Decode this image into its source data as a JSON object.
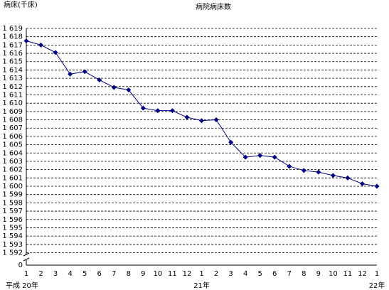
{
  "chart_data": {
    "type": "line",
    "title": "病院病床数",
    "y_label": "病床(千床)",
    "categories": [
      "1",
      "2",
      "3",
      "4",
      "5",
      "6",
      "7",
      "8",
      "9",
      "10",
      "11",
      "12",
      "1",
      "2",
      "3",
      "4",
      "5",
      "6",
      "7",
      "8",
      "9",
      "10",
      "11",
      "12",
      "1"
    ],
    "groups": [
      {
        "label": "平成 20年",
        "categories": 12
      },
      {
        "label": "21年",
        "categories": 12
      },
      {
        "label": "22年",
        "categories": 1
      }
    ],
    "series": [
      {
        "name": "病院病床数",
        "color": "#000080",
        "values": [
          1617.5,
          1617.0,
          1616.1,
          1613.5,
          1613.8,
          1612.8,
          1611.9,
          1611.6,
          1609.4,
          1609.1,
          1609.1,
          1608.3,
          1607.9,
          1608.0,
          1605.3,
          1603.5,
          1603.7,
          1603.5,
          1602.4,
          1601.9,
          1601.7,
          1601.3,
          1601.0,
          1600.3,
          1600.0
        ]
      }
    ],
    "ylim": [
      1592,
      1619
    ],
    "yticks": [
      0,
      {
        "value": 1592,
        "label": "1 592"
      },
      {
        "value": 1593,
        "label": "1 593"
      },
      {
        "value": 1594,
        "label": "1 594"
      },
      {
        "value": 1595,
        "label": "1 595"
      },
      {
        "value": 1596,
        "label": "1 596"
      },
      {
        "value": 1597,
        "label": "1 597"
      },
      {
        "value": 1598,
        "label": "1 598"
      },
      {
        "value": 1599,
        "label": "1 599"
      },
      {
        "value": 1600,
        "label": "1 600"
      },
      {
        "value": 1601,
        "label": "1 601"
      },
      {
        "value": 1602,
        "label": "1 602"
      },
      {
        "value": 1603,
        "label": "1 603"
      },
      {
        "value": 1604,
        "label": "1 604"
      },
      {
        "value": 1605,
        "label": "1 605"
      },
      {
        "value": 1606,
        "label": "1 606"
      },
      {
        "value": 1607,
        "label": "1 607"
      },
      {
        "value": 1608,
        "label": "1 608"
      },
      {
        "value": 1609,
        "label": "1 609"
      },
      {
        "value": 1610,
        "label": "1 610"
      },
      {
        "value": 1611,
        "label": "1 611"
      },
      {
        "value": 1612,
        "label": "1 612"
      },
      {
        "value": 1613,
        "label": "1 613"
      },
      {
        "value": 1614,
        "label": "1 614"
      },
      {
        "value": 1615,
        "label": "1 615"
      },
      {
        "value": 1616,
        "label": "1 616"
      },
      {
        "value": 1617,
        "label": "1 617"
      },
      {
        "value": 1618,
        "label": "1 618"
      },
      {
        "value": 1619,
        "label": "1 619"
      }
    ],
    "axis_break": true,
    "grid": true
  }
}
